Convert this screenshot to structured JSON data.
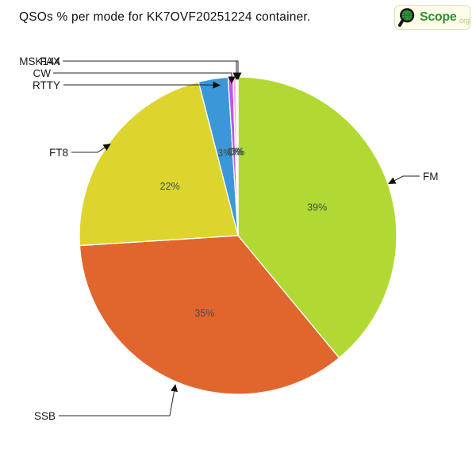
{
  "title": "QSOs % per mode for KK7OVF20251224 container.",
  "logo": {
    "text_main": "Scope",
    "text_suffix": ".org",
    "main_color": "#2f8f2f",
    "suffix_color": "#a3cc78"
  },
  "chart_data": {
    "type": "pie",
    "title": "QSOs % per mode for KK7OVF20251224 container.",
    "direction": "clockwise",
    "start_angle": "12 o'clock",
    "legend": "none (leader-line labels)",
    "pct_text_color": "#3e4f4f",
    "label_text_color": "#1a1a1a",
    "slices": [
      {
        "label": "FM",
        "pct_label": "39%",
        "pct_value": 39,
        "color": "#b2d933"
      },
      {
        "label": "SSB",
        "pct_label": "35%",
        "pct_value": 35,
        "color": "#e0662d"
      },
      {
        "label": "FT8",
        "pct_label": "22%",
        "pct_value": 22,
        "color": "#ddd42e"
      },
      {
        "label": "RTTY",
        "pct_label": "3%",
        "pct_value": 3,
        "color": "#3b97d8"
      },
      {
        "label": "CW",
        "pct_label": "0%",
        "pct_value": 0.5,
        "color": "#c256e8"
      },
      {
        "label": "MSK144",
        "pct_label": "0%",
        "pct_value": 0.3,
        "color": "#f4aee9"
      },
      {
        "label": "FAX",
        "pct_label": "0%",
        "pct_value": 0.2,
        "color": "#fbe4f6"
      }
    ]
  }
}
